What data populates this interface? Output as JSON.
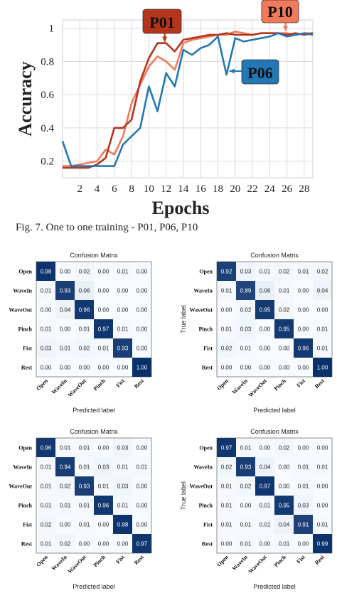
{
  "caption": "Fig. 7.  One to one training - P01, P06, P10",
  "chart_data": [
    {
      "type": "line",
      "xlabel": "Epochs",
      "ylabel": "Accuracy",
      "xlim": [
        0,
        29
      ],
      "ylim": [
        0.1,
        1.05
      ],
      "x_ticks": [
        "2",
        "4",
        "6",
        "8",
        "10",
        "12",
        "14",
        "16",
        "18",
        "20",
        "22",
        "24",
        "26",
        "28"
      ],
      "y_ticks": [
        "0.2",
        "0.4",
        "0.6",
        "0.8",
        "1"
      ],
      "grid": true,
      "series": [
        {
          "name": "P01",
          "color": "#b5341c",
          "x": [
            0,
            1,
            2,
            3,
            4,
            5,
            6,
            7,
            8,
            9,
            10,
            11,
            12,
            13,
            14,
            15,
            16,
            17,
            18,
            19,
            20,
            21,
            22,
            23,
            24,
            25,
            26,
            27,
            28,
            29
          ],
          "values": [
            0.16,
            0.16,
            0.16,
            0.16,
            0.18,
            0.22,
            0.4,
            0.4,
            0.45,
            0.68,
            0.82,
            0.91,
            0.91,
            0.86,
            0.93,
            0.94,
            0.95,
            0.96,
            0.96,
            0.97,
            0.96,
            0.96,
            0.96,
            0.97,
            0.97,
            0.97,
            0.96,
            0.97,
            0.96,
            0.97
          ]
        },
        {
          "name": "P06",
          "color": "#2277b4",
          "x": [
            0,
            1,
            2,
            3,
            4,
            5,
            6,
            7,
            8,
            9,
            10,
            11,
            12,
            13,
            14,
            15,
            16,
            17,
            18,
            19,
            20,
            21,
            22,
            23,
            24,
            25,
            26,
            27,
            28,
            29
          ],
          "values": [
            0.32,
            0.17,
            0.17,
            0.17,
            0.17,
            0.17,
            0.17,
            0.3,
            0.35,
            0.4,
            0.65,
            0.5,
            0.73,
            0.65,
            0.87,
            0.84,
            0.88,
            0.9,
            0.95,
            0.72,
            0.94,
            0.92,
            0.93,
            0.94,
            0.95,
            0.97,
            0.95,
            0.96,
            0.97,
            0.96
          ]
        },
        {
          "name": "P10",
          "color": "#f07a5a",
          "x": [
            0,
            1,
            2,
            3,
            4,
            5,
            6,
            7,
            8,
            9,
            10,
            11,
            12,
            13,
            14,
            15,
            16,
            17,
            18,
            19,
            20,
            21,
            22,
            23,
            24,
            25,
            26,
            27,
            28,
            29
          ],
          "values": [
            0.17,
            0.17,
            0.18,
            0.19,
            0.2,
            0.27,
            0.24,
            0.35,
            0.55,
            0.66,
            0.77,
            0.83,
            0.8,
            0.75,
            0.91,
            0.93,
            0.94,
            0.95,
            0.96,
            0.96,
            0.98,
            0.97,
            0.96,
            0.97,
            0.97,
            0.97,
            0.97,
            0.96,
            0.97,
            0.97
          ]
        }
      ],
      "annotations": [
        {
          "text": "P01",
          "color": "#b5341c",
          "x": 12,
          "y": 0.91
        },
        {
          "text": "P06",
          "color": "#2277b4",
          "x": 19,
          "y": 0.82
        },
        {
          "text": "P10",
          "color": "#f07a5a",
          "x": 26,
          "y": 0.97
        }
      ]
    },
    {
      "type": "heatmap",
      "title": "Confusion Matrix",
      "xlabel": "Predicted label",
      "ylabel": "True label",
      "labels": [
        "Open",
        "WaveIn",
        "WaveOut",
        "Pinch",
        "Fist",
        "Rest"
      ],
      "values": [
        [
          "0.98",
          "0.00",
          "0.02",
          "0.00",
          "0.01",
          "0.00"
        ],
        [
          "0.01",
          "0.93",
          "0.06",
          "0.00",
          "0.00",
          "0.00"
        ],
        [
          "0.00",
          "0.04",
          "0.96",
          "0.00",
          "0.00",
          "0.00"
        ],
        [
          "0.01",
          "0.00",
          "0.01",
          "0.97",
          "0.01",
          "0.00"
        ],
        [
          "0.03",
          "0.01",
          "0.02",
          "0.01",
          "0.93",
          "0.00"
        ],
        [
          "0.00",
          "0.00",
          "0.00",
          "0.00",
          "0.00",
          "1.00"
        ]
      ]
    },
    {
      "type": "heatmap",
      "title": "Confusion Matrix",
      "xlabel": "Predicted label",
      "ylabel": "True label",
      "labels": [
        "Open",
        "WaveIn",
        "WaveOut",
        "Pinch",
        "Fist",
        "Rest"
      ],
      "values": [
        [
          "0.92",
          "0.03",
          "0.01",
          "0.02",
          "0.01",
          "0.02"
        ],
        [
          "0.01",
          "0.89",
          "0.06",
          "0.01",
          "0.00",
          "0.04"
        ],
        [
          "0.00",
          "0.02",
          "0.95",
          "0.02",
          "0.00",
          "0.00"
        ],
        [
          "0.01",
          "0.03",
          "0.00",
          "0.95",
          "0.00",
          "0.01"
        ],
        [
          "0.02",
          "0.01",
          "0.00",
          "0.00",
          "0.96",
          "0.01"
        ],
        [
          "0.00",
          "0.00",
          "0.00",
          "0.00",
          "0.00",
          "1.00"
        ]
      ]
    },
    {
      "type": "heatmap",
      "title": "Confusion Matrix",
      "xlabel": "Predicted label",
      "ylabel": "True label",
      "labels": [
        "Open",
        "WaveIn",
        "WaveOut",
        "Pinch",
        "Fist",
        "Rest"
      ],
      "values": [
        [
          "0.96",
          "0.01",
          "0.01",
          "0.00",
          "0.03",
          "0.00"
        ],
        [
          "0.01",
          "0.94",
          "0.01",
          "0.03",
          "0.01",
          "0.01"
        ],
        [
          "0.01",
          "0.02",
          "0.93",
          "0.01",
          "0.03",
          "0.00"
        ],
        [
          "0.01",
          "0.01",
          "0.01",
          "0.96",
          "0.01",
          "0.00"
        ],
        [
          "0.02",
          "0.00",
          "0.01",
          "0.00",
          "0.98",
          "0.00"
        ],
        [
          "0.01",
          "0.02",
          "0.00",
          "0.00",
          "0.00",
          "0.97"
        ]
      ]
    },
    {
      "type": "heatmap",
      "title": "Confusion Matrix",
      "xlabel": "Predicted label",
      "ylabel": "True label",
      "labels": [
        "Open",
        "WaveIn",
        "WaveOut",
        "Pinch",
        "Fist",
        "Rest"
      ],
      "values": [
        [
          "0.97",
          "0.01",
          "0.00",
          "0.02",
          "0.00",
          "0.00"
        ],
        [
          "0.02",
          "0.93",
          "0.04",
          "0.00",
          "0.01",
          "0.01"
        ],
        [
          "0.01",
          "0.02",
          "0.97",
          "0.00",
          "0.01",
          "0.00"
        ],
        [
          "0.01",
          "0.00",
          "0.01",
          "0.95",
          "0.03",
          "0.00"
        ],
        [
          "0.01",
          "0.01",
          "0.01",
          "0.04",
          "0.91",
          "0.01"
        ],
        [
          "0.00",
          "0.01",
          "0.00",
          "0.01",
          "0.00",
          "0.99"
        ]
      ]
    }
  ]
}
